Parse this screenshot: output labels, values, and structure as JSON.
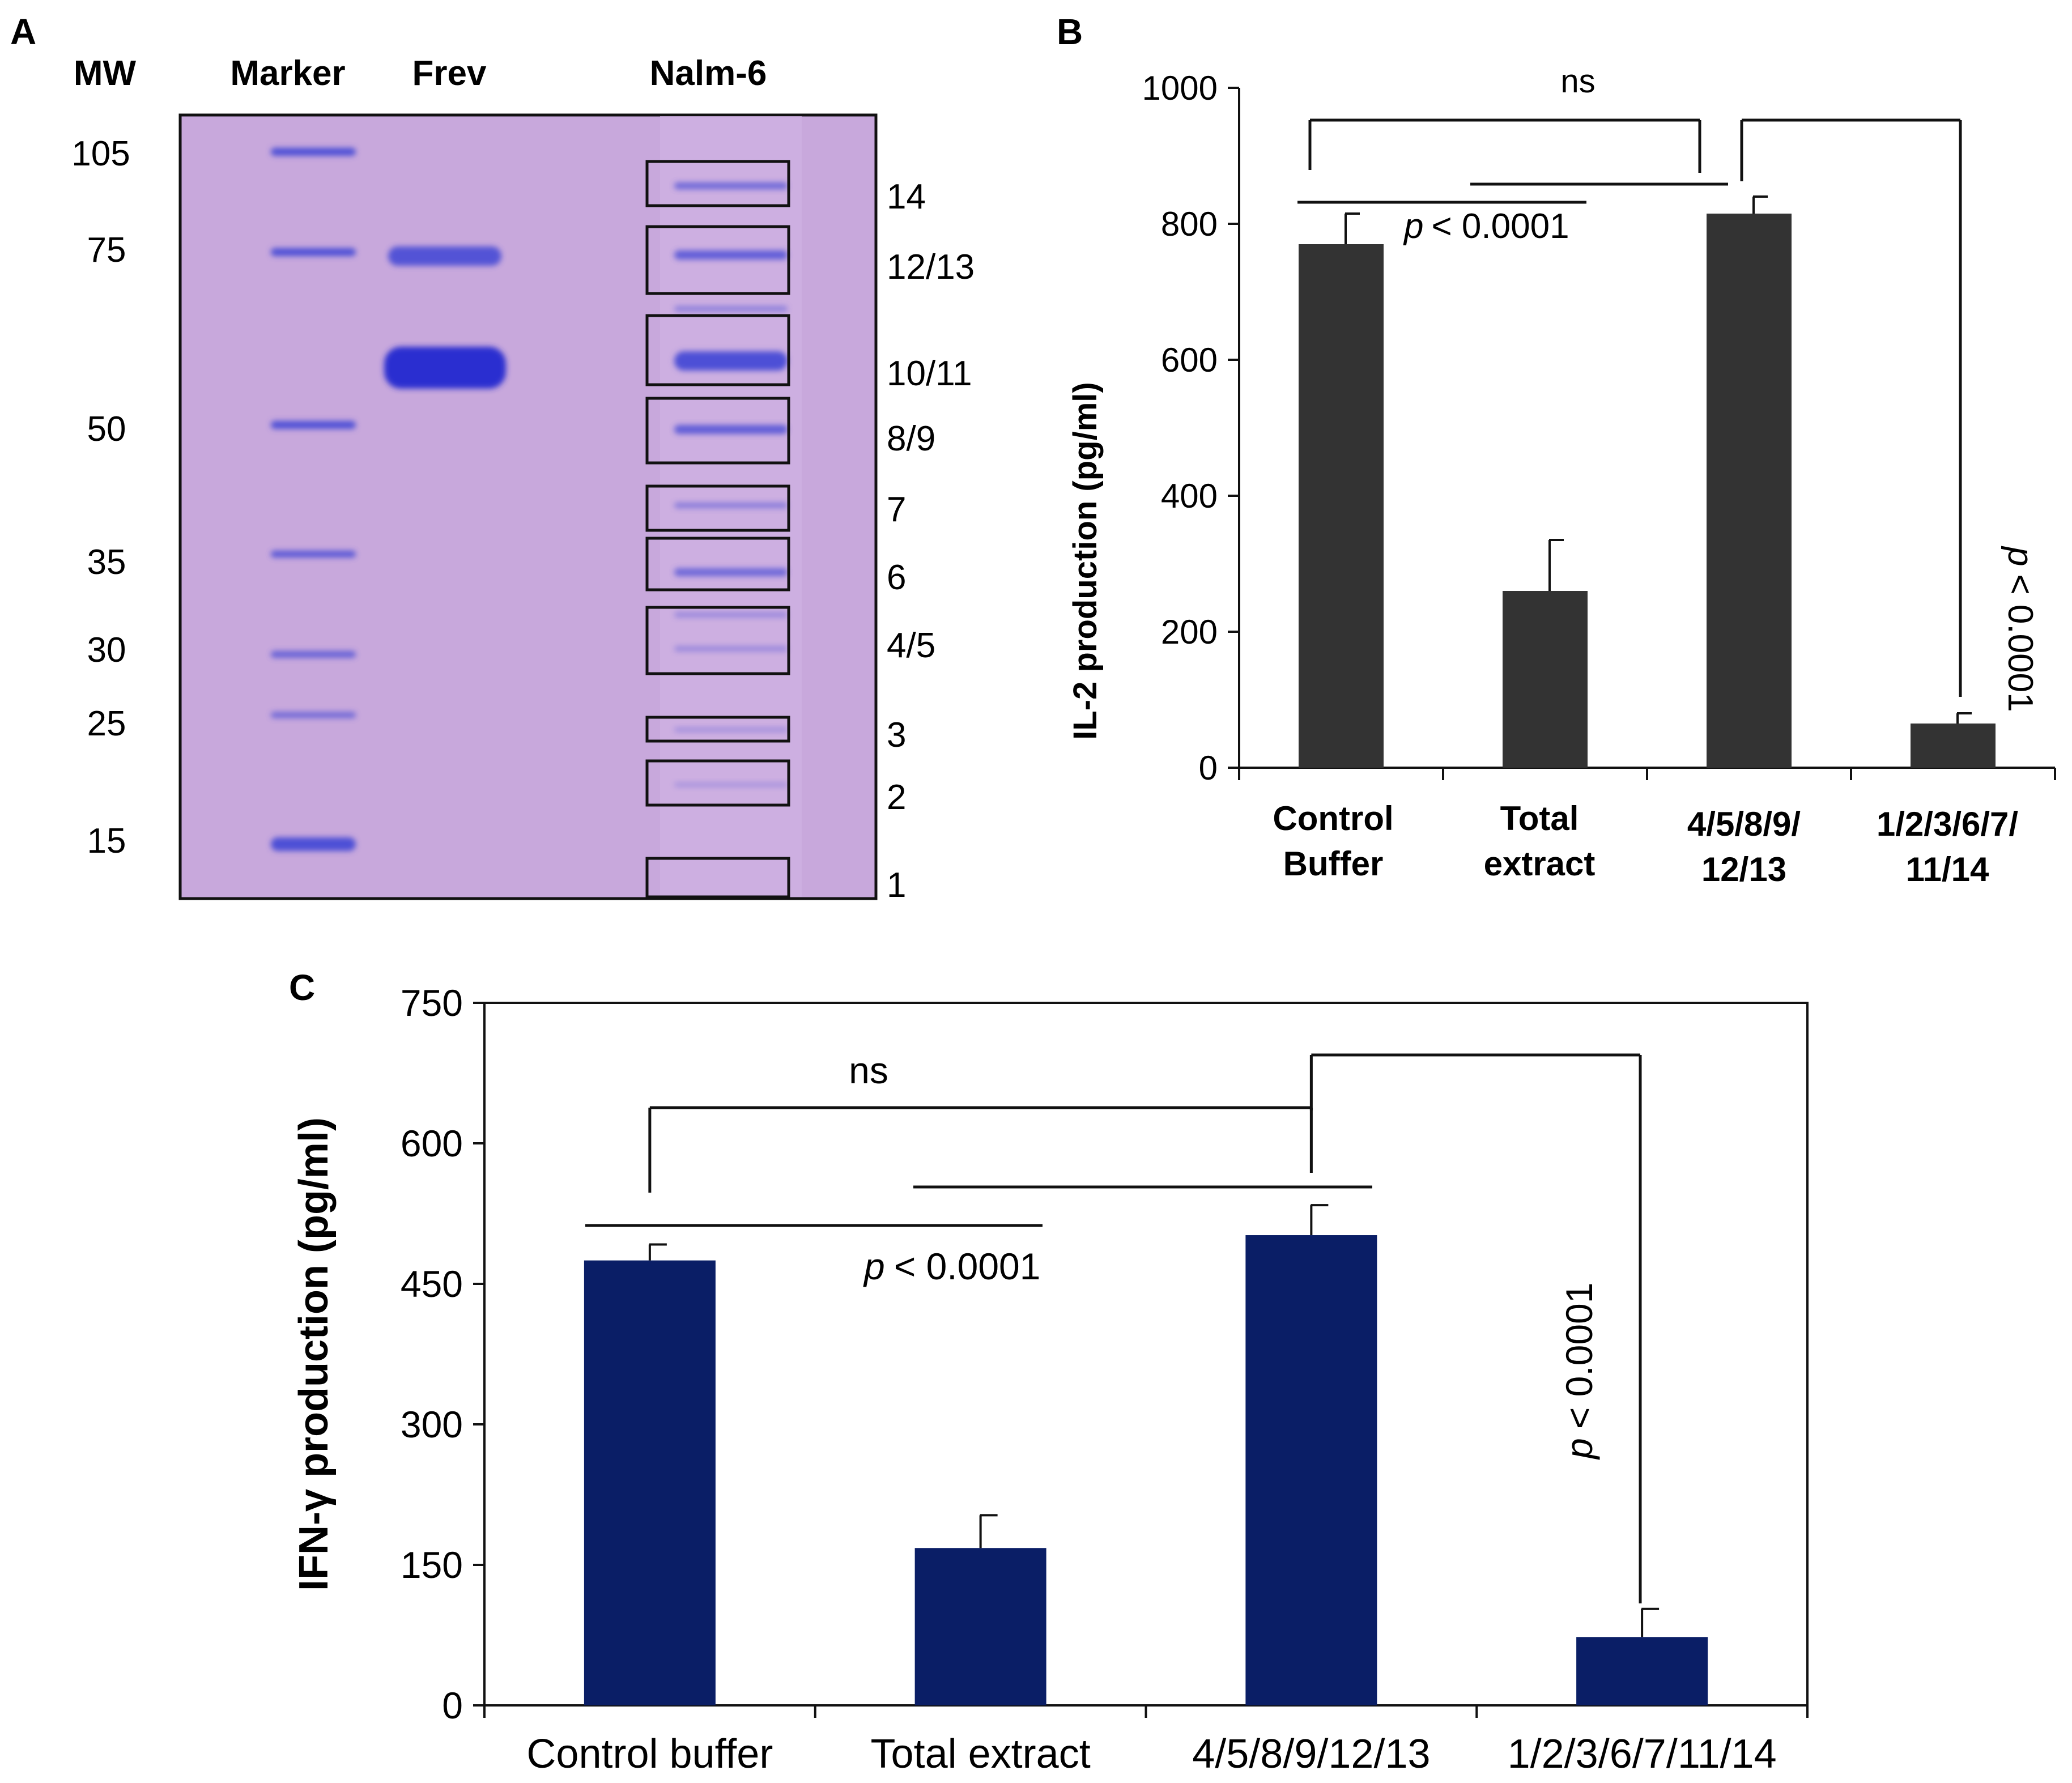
{
  "panels": {
    "A": "A",
    "B": "B",
    "C": "C"
  },
  "gel": {
    "mw_header": "MW",
    "lane_headers": [
      "Marker",
      "Frev",
      "Nalm-6"
    ],
    "mw_labels": [
      "105",
      "75",
      "50",
      "35",
      "30",
      "25",
      "15"
    ],
    "fraction_labels": [
      "14",
      "12/13",
      "10/11",
      "8/9",
      "7",
      "6",
      "4/5",
      "3",
      "2",
      "1"
    ],
    "colors": {
      "background": "#c8a8dc",
      "band": "#4d4fd6",
      "band_dark": "#2a2fd0"
    }
  },
  "chart_data": [
    {
      "type": "bar",
      "panel": "B",
      "ylabel": "IL-2 production (pg/ml)",
      "ylim": [
        0,
        1000
      ],
      "yticks": [
        "0",
        "200",
        "400",
        "600",
        "800",
        "1000"
      ],
      "categories": [
        [
          "Control",
          "Buffer"
        ],
        [
          "Total",
          "extract"
        ],
        [
          "4/5/8/9/",
          "12/13"
        ],
        [
          "1/2/3/6/7/",
          "11/14"
        ]
      ],
      "values": [
        770,
        260,
        815,
        65
      ],
      "errors": [
        45,
        75,
        25,
        15
      ],
      "color": "#333333",
      "annotations": {
        "ns": "ns",
        "p_horizontal": "< 0.0001",
        "p_vertical": "< 0.0001",
        "p_symbol": "p"
      }
    },
    {
      "type": "bar",
      "panel": "C",
      "ylabel": "IFN-γ production (pg/ml)",
      "ylim": [
        0,
        750
      ],
      "yticks": [
        "0",
        "150",
        "300",
        "450",
        "600",
        "750"
      ],
      "categories": [
        "Control buffer",
        "Total extract",
        "4/5/8/9/12/13",
        "1/2/3/6/7/11/14"
      ],
      "values": [
        475,
        168,
        502,
        73
      ],
      "errors": [
        17,
        35,
        32,
        30
      ],
      "color": "#0a1e66",
      "annotations": {
        "ns": "ns",
        "p_horizontal": "< 0.0001",
        "p_vertical": "< 0.0001",
        "p_symbol": "p"
      }
    }
  ]
}
